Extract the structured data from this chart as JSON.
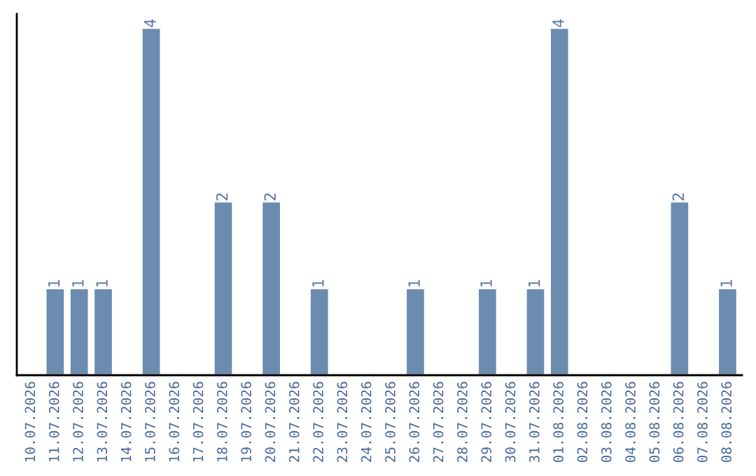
{
  "chart_data": {
    "type": "bar",
    "categories": [
      "10.07.2026",
      "11.07.2026",
      "12.07.2026",
      "13.07.2026",
      "14.07.2026",
      "15.07.2026",
      "16.07.2026",
      "17.07.2026",
      "18.07.2026",
      "19.07.2026",
      "20.07.2026",
      "21.07.2026",
      "22.07.2026",
      "23.07.2026",
      "24.07.2026",
      "25.07.2026",
      "26.07.2026",
      "27.07.2026",
      "28.07.2026",
      "29.07.2026",
      "30.07.2026",
      "31.07.2026",
      "01.08.2026",
      "02.08.2026",
      "03.08.2026",
      "04.08.2026",
      "05.08.2026",
      "06.08.2026",
      "07.08.2026",
      "08.08.2026"
    ],
    "values": [
      null,
      1,
      1,
      1,
      null,
      4,
      null,
      null,
      2,
      null,
      2,
      null,
      1,
      null,
      null,
      null,
      1,
      null,
      null,
      1,
      null,
      1,
      4,
      null,
      null,
      null,
      null,
      2,
      null,
      1
    ],
    "value_labels": [
      null,
      "1",
      "1",
      "1",
      null,
      "4",
      null,
      null,
      "2",
      null,
      "2",
      null,
      "1",
      null,
      null,
      null,
      "1",
      null,
      null,
      "1",
      null,
      "1",
      "4",
      null,
      null,
      null,
      null,
      "2",
      null,
      "1"
    ],
    "color": "#6b8caf",
    "tick_labels": "x",
    "grid": false,
    "legend": false
  }
}
